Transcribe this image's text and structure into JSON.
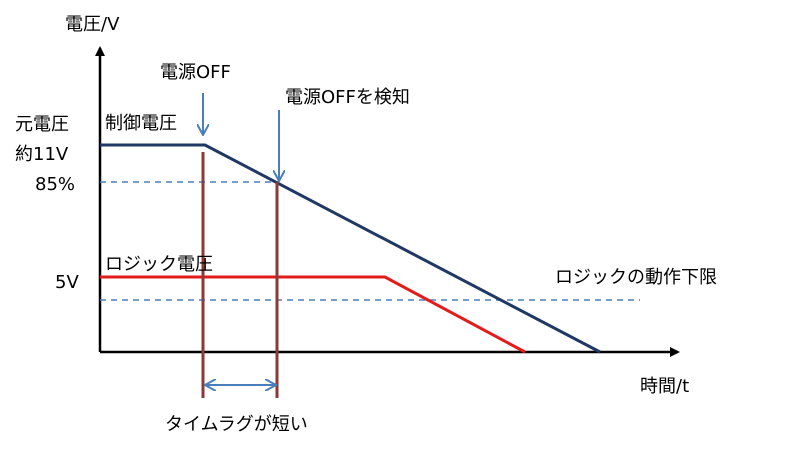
{
  "labels": {
    "y_axis": "電圧/V",
    "x_axis": "時間/t",
    "power_off": "電源OFF",
    "power_off_detect": "電源OFFを検知",
    "original_voltage": "元電圧",
    "approx_voltage": "約11V",
    "control_voltage": "制御電圧",
    "percent_85": "85%",
    "logic_voltage": "ロジック電圧",
    "five_volt": "5V",
    "logic_lower_limit": "ロジックの動作下限",
    "time_lag": "タイムラグが短い"
  }
}
